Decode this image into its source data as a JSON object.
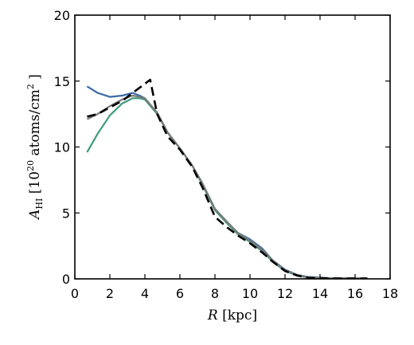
{
  "chart_data": {
    "type": "line",
    "xlabel_var": "R",
    "xlabel_unit": "[kpc]",
    "ylabel_var": "A",
    "ylabel_sub": "HI",
    "ylabel_unit_pre": "[10",
    "ylabel_unit_exp": "20",
    "ylabel_unit_mid": " atoms/cm",
    "ylabel_unit_exp2": "2",
    "ylabel_unit_post": " ]",
    "xlim": [
      0,
      18
    ],
    "ylim": [
      0,
      20
    ],
    "xticks": [
      0,
      2,
      4,
      6,
      8,
      10,
      12,
      14,
      16,
      18
    ],
    "yticks": [
      0,
      5,
      10,
      15,
      20
    ],
    "xtick_labels": [
      "0",
      "2",
      "4",
      "6",
      "8",
      "10",
      "12",
      "14",
      "16",
      "18"
    ],
    "ytick_labels": [
      "0",
      "5",
      "10",
      "15",
      "20"
    ],
    "grid": false,
    "series": [
      {
        "color": "#3a6aa5",
        "style": "solid",
        "x": [
          0.7,
          1.3,
          2.0,
          2.7,
          3.3,
          3.7,
          4.0,
          4.7,
          5.3,
          6.0,
          6.7,
          7.3,
          8.0,
          8.7,
          9.3,
          10.0,
          10.7,
          11.3,
          12.0,
          12.7,
          13.3,
          14.0,
          14.7,
          15.3,
          16.0,
          16.7
        ],
        "y": [
          14.6,
          14.1,
          13.8,
          13.9,
          14.1,
          13.9,
          13.7,
          12.6,
          11.1,
          9.9,
          8.6,
          7.2,
          5.3,
          4.3,
          3.5,
          3.0,
          2.3,
          1.4,
          0.7,
          0.3,
          0.15,
          0.1,
          0.05,
          0.05,
          0.05,
          0.05
        ]
      },
      {
        "color": "#3f9a7e",
        "style": "solid",
        "x": [
          0.7,
          1.3,
          2.0,
          2.7,
          3.3,
          3.7,
          4.0,
          4.7,
          5.3,
          6.0,
          6.7,
          7.3,
          8.0,
          8.7,
          9.3,
          10.0,
          10.7,
          11.3,
          12.0,
          12.7,
          13.3,
          14.0,
          14.7,
          15.3,
          16.0,
          16.7
        ],
        "y": [
          9.6,
          11.0,
          12.4,
          13.3,
          13.7,
          13.7,
          13.6,
          12.5,
          11.1,
          9.9,
          8.6,
          7.1,
          5.2,
          4.2,
          3.4,
          2.8,
          2.1,
          1.3,
          0.6,
          0.25,
          0.1,
          0.05,
          0.05,
          0.05,
          0.05,
          0.05
        ]
      },
      {
        "color": "#7a7a7a",
        "style": "solid",
        "x": [
          0.7,
          1.3,
          2.0,
          2.7,
          3.3,
          3.7,
          4.0,
          4.7,
          5.3,
          6.0,
          6.7,
          7.3,
          8.0,
          8.7,
          9.3,
          10.0,
          10.7,
          11.3,
          12.0,
          12.7,
          13.3,
          14.0,
          14.7,
          15.3,
          16.0,
          16.7
        ],
        "y": [
          12.1,
          12.5,
          13.1,
          13.6,
          13.9,
          13.8,
          13.7,
          12.6,
          11.1,
          9.9,
          8.6,
          7.2,
          5.3,
          4.3,
          3.5,
          2.9,
          2.2,
          1.4,
          0.65,
          0.3,
          0.12,
          0.08,
          0.05,
          0.05,
          0.05,
          0.05
        ]
      },
      {
        "color": "#000000",
        "style": "dashed",
        "x": [
          0.7,
          1.3,
          2.0,
          2.7,
          3.3,
          4.0,
          4.3,
          4.7,
          5.3,
          6.0,
          6.7,
          7.3,
          8.0,
          8.7,
          9.3,
          10.0,
          10.7,
          11.3,
          12.0,
          12.7,
          13.3,
          14.0,
          14.7,
          15.3,
          16.0,
          16.7
        ],
        "y": [
          12.3,
          12.5,
          13.0,
          13.5,
          14.1,
          14.8,
          15.1,
          12.5,
          10.8,
          9.8,
          8.5,
          6.9,
          4.7,
          3.9,
          3.3,
          2.7,
          2.0,
          1.3,
          0.6,
          0.25,
          0.08,
          0.05,
          0.03,
          0.03,
          0.03,
          0.03
        ]
      }
    ]
  }
}
